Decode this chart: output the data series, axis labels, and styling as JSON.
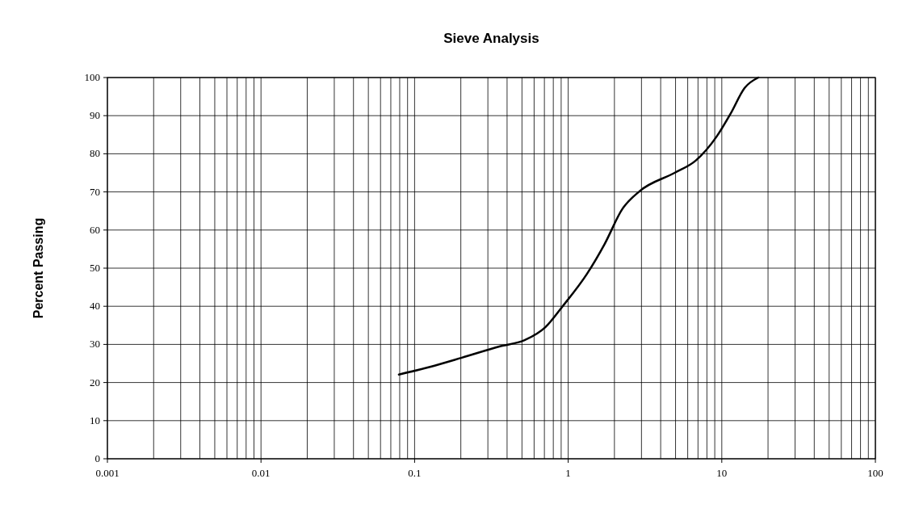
{
  "chart_data": {
    "type": "line",
    "title": "Sieve Analysis",
    "ylabel": "Percent Passing",
    "log": "x",
    "grid": true,
    "marker": "none",
    "line_style": "solid",
    "xlim": [
      0.001,
      100
    ],
    "xticks": [
      0.001,
      0.01,
      0.1,
      1,
      10,
      100
    ],
    "ylim": [
      0,
      100
    ],
    "yticks": [
      0,
      10,
      20,
      30,
      40,
      50,
      60,
      70,
      80,
      90,
      100
    ],
    "series": [
      {
        "color": "#000000",
        "x": [
          0.079,
          0.126,
          0.203,
          0.36,
          0.52,
          0.71,
          0.92,
          1.33,
          1.73,
          2.25,
          2.92,
          4.93,
          6.76,
          9.25,
          11.4,
          14.1,
          17.3
        ],
        "values": [
          22.1,
          24.1,
          26.5,
          29.5,
          31.1,
          34.5,
          40,
          48.6,
          56.4,
          65.5,
          70.2,
          75,
          78.2,
          84.5,
          90.5,
          97.3,
          100
        ]
      }
    ]
  }
}
